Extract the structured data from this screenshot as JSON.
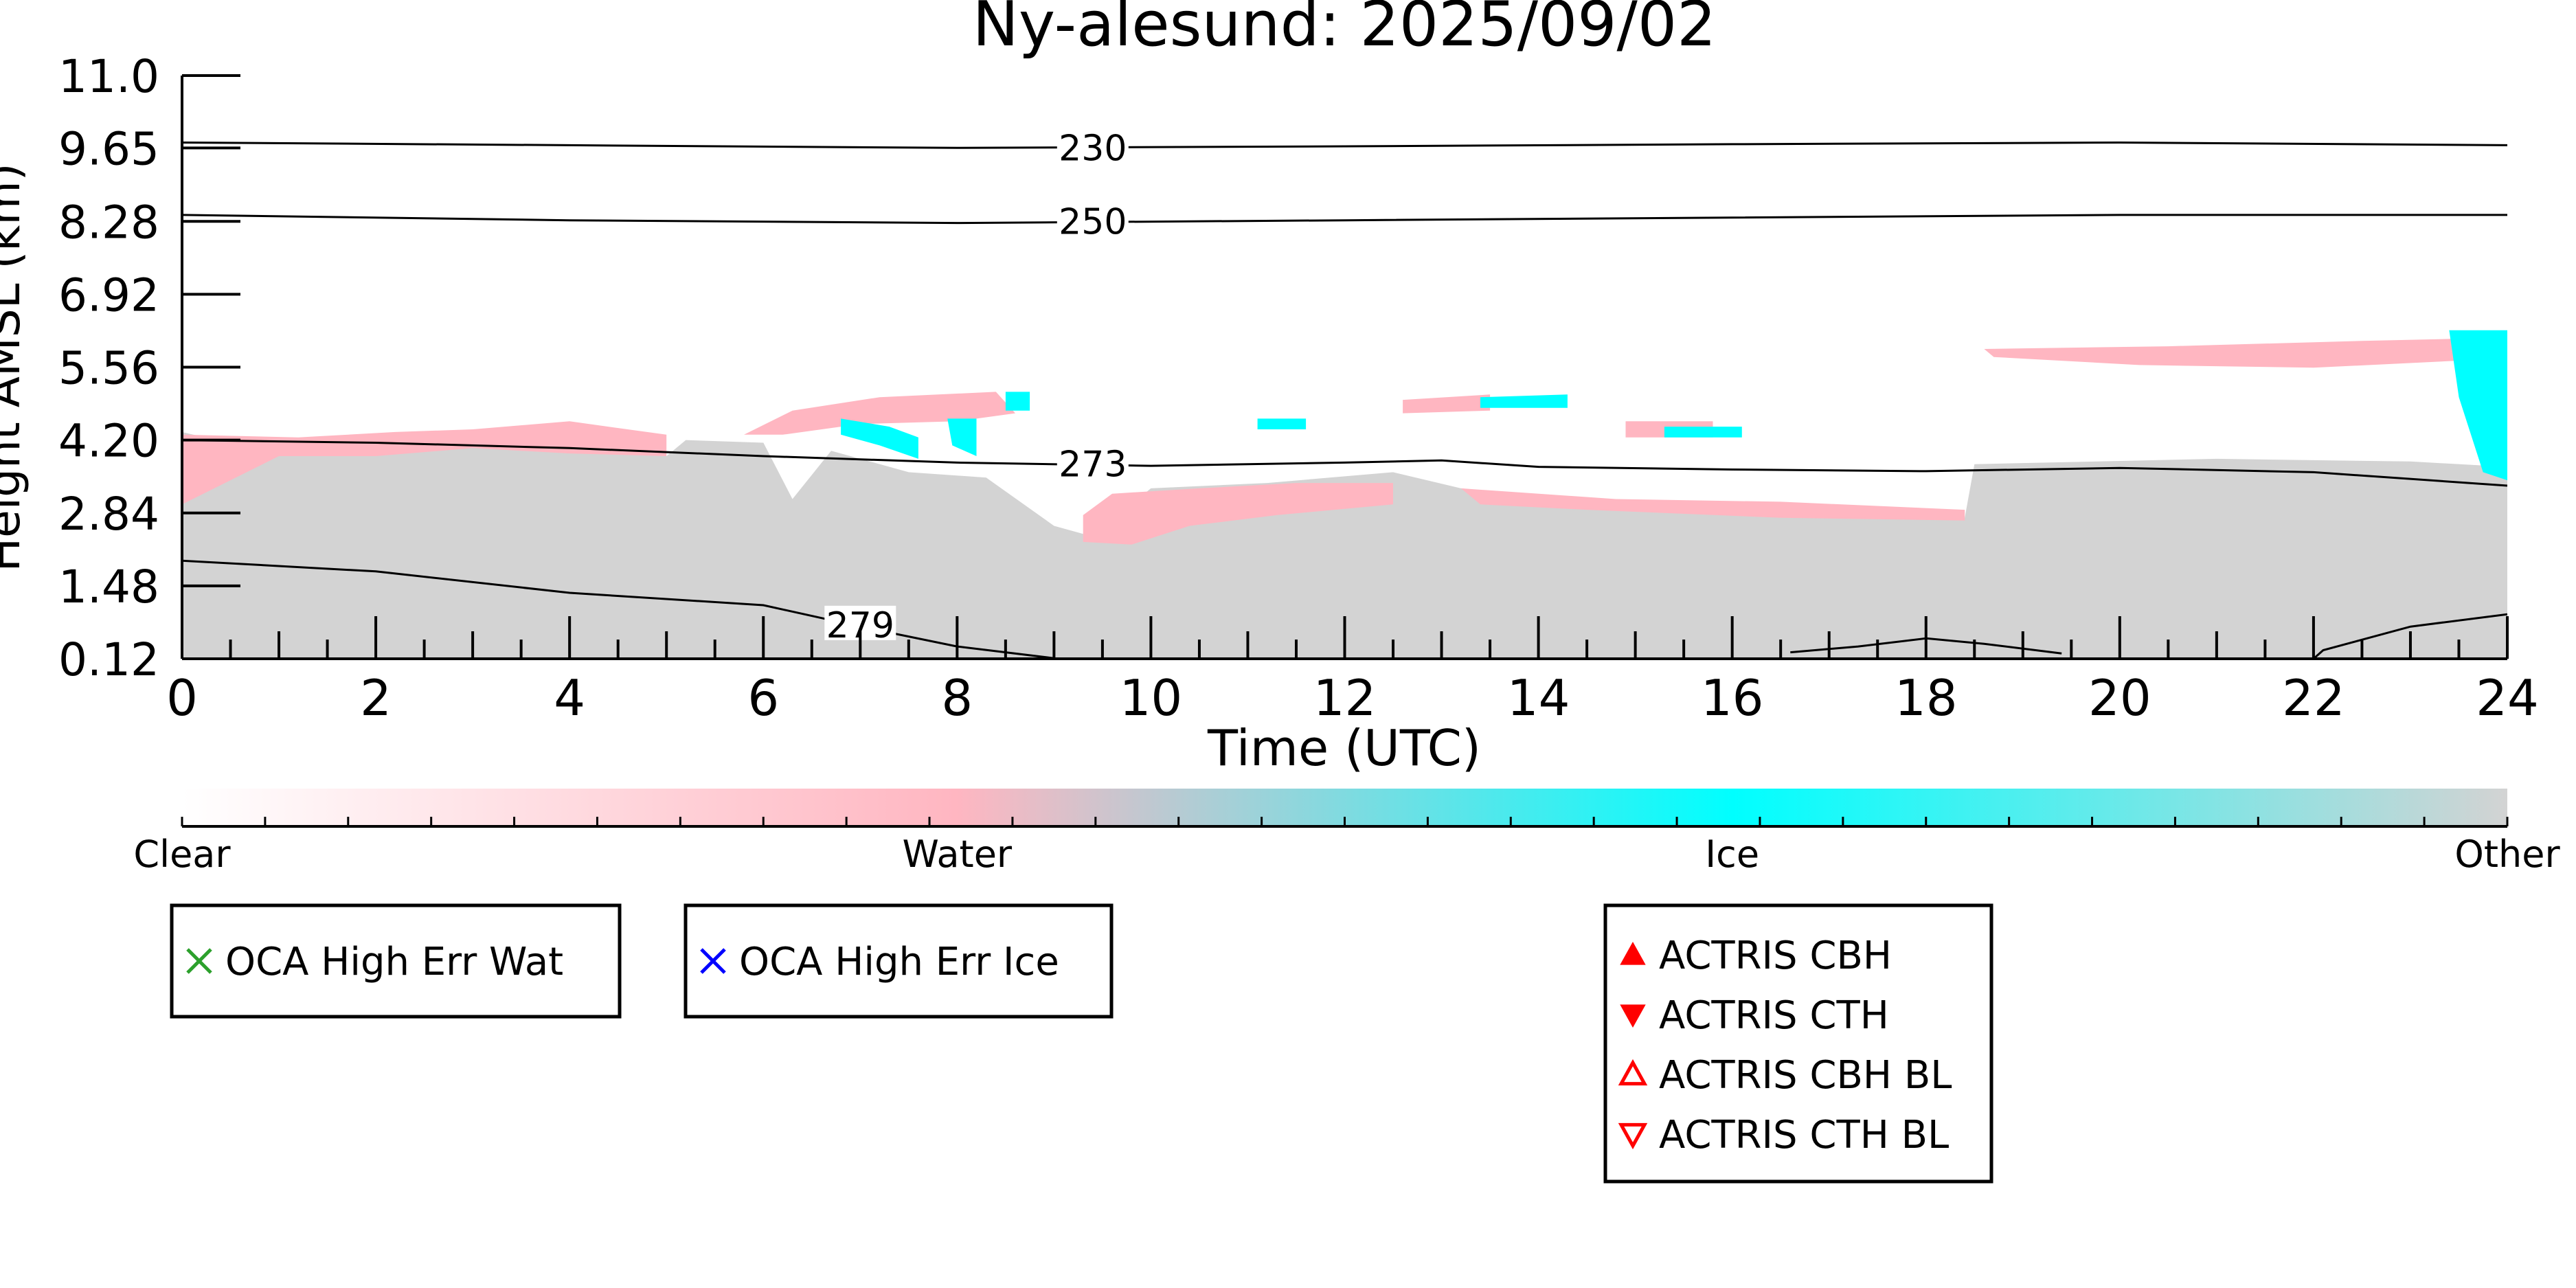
{
  "chart_data": {
    "type": "heatmap",
    "title": "Ny-alesund: 2025/09/02",
    "xlabel": "Time (UTC)",
    "ylabel": "Height AMSL (km)",
    "xlim": [
      0,
      24
    ],
    "ylim": [
      0.12,
      11.0
    ],
    "x_ticks": [
      0,
      2,
      4,
      6,
      8,
      10,
      12,
      14,
      16,
      18,
      20,
      22,
      24
    ],
    "y_ticks": [
      0.12,
      1.48,
      2.84,
      4.2,
      5.56,
      6.92,
      8.28,
      9.65,
      11.0
    ],
    "y_tick_labels": [
      "0.12",
      "1.48",
      "2.84",
      "4.20",
      "5.56",
      "6.92",
      "8.28",
      "9.65",
      "11.0"
    ],
    "grid": false,
    "colorbar": {
      "labels": [
        "Clear",
        "Water",
        "Ice",
        "Other"
      ],
      "colors": [
        "#ffffff",
        "#ffb6c1",
        "#00ffff",
        "#d3d3d3"
      ]
    },
    "category_colors": {
      "Other": "#d3d3d3",
      "Water": "#ffb6c1",
      "Ice": "#00ffff"
    },
    "regions": [
      {
        "category": "Other",
        "points": [
          [
            0,
            0.12
          ],
          [
            0,
            4.35
          ],
          [
            0.7,
            4.05
          ],
          [
            1.5,
            4.2
          ],
          [
            3,
            4.1
          ],
          [
            5,
            3.9
          ],
          [
            5.2,
            4.2
          ],
          [
            6,
            4.15
          ],
          [
            6.3,
            3.1
          ],
          [
            6.7,
            4.0
          ],
          [
            7.5,
            3.6
          ],
          [
            8.3,
            3.5
          ],
          [
            9,
            2.6
          ],
          [
            9.4,
            2.4
          ],
          [
            10,
            3.3
          ],
          [
            11.2,
            3.4
          ],
          [
            12.5,
            3.6
          ],
          [
            13.2,
            3.3
          ],
          [
            14.5,
            3.0
          ],
          [
            16,
            2.95
          ],
          [
            17.5,
            2.8
          ],
          [
            18.4,
            2.75
          ],
          [
            18.5,
            3.75
          ],
          [
            21,
            3.85
          ],
          [
            23,
            3.8
          ],
          [
            24,
            3.7
          ],
          [
            24,
            0.12
          ]
        ]
      },
      {
        "category": "Water",
        "points": [
          [
            0,
            3.0
          ],
          [
            0,
            4.3
          ],
          [
            1.2,
            4.25
          ],
          [
            2.2,
            4.35
          ],
          [
            3,
            4.4
          ],
          [
            4,
            4.55
          ],
          [
            5,
            4.3
          ],
          [
            5,
            3.9
          ],
          [
            4,
            3.95
          ],
          [
            3,
            4.05
          ],
          [
            2,
            3.9
          ],
          [
            1,
            3.9
          ]
        ]
      },
      {
        "category": "Water",
        "points": [
          [
            5.8,
            4.3
          ],
          [
            6.3,
            4.75
          ],
          [
            7.2,
            5.0
          ],
          [
            8.4,
            5.1
          ],
          [
            8.6,
            4.7
          ],
          [
            8,
            4.55
          ],
          [
            7,
            4.5
          ],
          [
            6.2,
            4.3
          ]
        ]
      },
      {
        "category": "Water",
        "points": [
          [
            9.3,
            2.3
          ],
          [
            9.8,
            2.25
          ],
          [
            10.4,
            2.6
          ],
          [
            11.3,
            2.8
          ],
          [
            12.5,
            3.0
          ],
          [
            12.5,
            3.4
          ],
          [
            11.5,
            3.4
          ],
          [
            10.5,
            3.3
          ],
          [
            9.6,
            3.2
          ],
          [
            9.3,
            2.8
          ]
        ]
      },
      {
        "category": "Water",
        "points": [
          [
            13.2,
            3.3
          ],
          [
            14.8,
            3.1
          ],
          [
            16.5,
            3.05
          ],
          [
            18.4,
            2.9
          ],
          [
            18.4,
            2.7
          ],
          [
            16.5,
            2.75
          ],
          [
            14.5,
            2.9
          ],
          [
            13.4,
            3.0
          ]
        ]
      },
      {
        "category": "Water",
        "points": [
          [
            18.6,
            5.9
          ],
          [
            20.5,
            5.95
          ],
          [
            22.5,
            6.05
          ],
          [
            23.7,
            6.1
          ],
          [
            23.7,
            5.7
          ],
          [
            22,
            5.55
          ],
          [
            20.2,
            5.6
          ],
          [
            18.7,
            5.75
          ]
        ]
      },
      {
        "category": "Water",
        "points": [
          [
            12.6,
            4.95
          ],
          [
            13.5,
            5.05
          ],
          [
            13.5,
            4.75
          ],
          [
            12.6,
            4.7
          ]
        ]
      },
      {
        "category": "Water",
        "points": [
          [
            14.9,
            4.55
          ],
          [
            15.8,
            4.55
          ],
          [
            15.8,
            4.25
          ],
          [
            14.9,
            4.25
          ]
        ]
      },
      {
        "category": "Ice",
        "points": [
          [
            6.8,
            4.6
          ],
          [
            7.3,
            4.45
          ],
          [
            7.6,
            4.25
          ],
          [
            7.6,
            3.85
          ],
          [
            7.2,
            4.1
          ],
          [
            6.8,
            4.3
          ]
        ]
      },
      {
        "category": "Ice",
        "points": [
          [
            7.9,
            4.6
          ],
          [
            8.2,
            4.6
          ],
          [
            8.2,
            3.9
          ],
          [
            7.95,
            4.1
          ]
        ]
      },
      {
        "category": "Ice",
        "points": [
          [
            8.5,
            5.1
          ],
          [
            8.75,
            5.1
          ],
          [
            8.75,
            4.75
          ],
          [
            8.5,
            4.75
          ]
        ]
      },
      {
        "category": "Ice",
        "points": [
          [
            13.4,
            5.0
          ],
          [
            14.3,
            5.05
          ],
          [
            14.3,
            4.8
          ],
          [
            13.4,
            4.8
          ]
        ]
      },
      {
        "category": "Ice",
        "points": [
          [
            11.1,
            4.6
          ],
          [
            11.6,
            4.6
          ],
          [
            11.6,
            4.4
          ],
          [
            11.1,
            4.4
          ]
        ]
      },
      {
        "category": "Ice",
        "points": [
          [
            15.3,
            4.45
          ],
          [
            16.1,
            4.45
          ],
          [
            16.1,
            4.25
          ],
          [
            15.3,
            4.25
          ]
        ]
      },
      {
        "category": "Ice",
        "points": [
          [
            23.4,
            6.25
          ],
          [
            24,
            6.25
          ],
          [
            24,
            3.45
          ],
          [
            23.75,
            3.6
          ],
          [
            23.5,
            5.0
          ]
        ]
      }
    ],
    "contours": [
      {
        "label": "230",
        "label_at": [
          9.4,
          9.65
        ],
        "points": [
          [
            0,
            9.75
          ],
          [
            4,
            9.7
          ],
          [
            8,
            9.65
          ],
          [
            12,
            9.68
          ],
          [
            16,
            9.72
          ],
          [
            20,
            9.75
          ],
          [
            24,
            9.7
          ]
        ]
      },
      {
        "label": "250",
        "label_at": [
          9.4,
          8.28
        ],
        "points": [
          [
            0,
            8.4
          ],
          [
            4,
            8.3
          ],
          [
            8,
            8.25
          ],
          [
            12,
            8.3
          ],
          [
            16,
            8.35
          ],
          [
            20,
            8.4
          ],
          [
            24,
            8.4
          ]
        ]
      },
      {
        "label": "273",
        "label_at": [
          9.4,
          3.75
        ],
        "points": [
          [
            0,
            4.2
          ],
          [
            2,
            4.15
          ],
          [
            4,
            4.05
          ],
          [
            6,
            3.9
          ],
          [
            8,
            3.78
          ],
          [
            10,
            3.72
          ],
          [
            12,
            3.78
          ],
          [
            13,
            3.82
          ],
          [
            14,
            3.7
          ],
          [
            16,
            3.65
          ],
          [
            18,
            3.62
          ],
          [
            20,
            3.68
          ],
          [
            22,
            3.6
          ],
          [
            24,
            3.35
          ]
        ]
      },
      {
        "label": "279",
        "label_at": [
          7.0,
          0.75
        ],
        "points": [
          [
            0,
            1.95
          ],
          [
            2,
            1.75
          ],
          [
            4,
            1.35
          ],
          [
            6,
            1.12
          ],
          [
            7,
            0.72
          ],
          [
            8,
            0.35
          ],
          [
            9,
            0.13
          ]
        ]
      },
      {
        "label": "",
        "label_at": null,
        "points": [
          [
            16.6,
            0.24
          ],
          [
            17.3,
            0.35
          ],
          [
            18,
            0.5
          ],
          [
            18.6,
            0.4
          ],
          [
            19.4,
            0.22
          ]
        ]
      },
      {
        "label": "",
        "label_at": null,
        "points": [
          [
            22,
            0.12
          ],
          [
            22.1,
            0.28
          ],
          [
            23,
            0.72
          ],
          [
            24,
            0.95
          ]
        ]
      }
    ],
    "legends": [
      {
        "entries": [
          {
            "label": "OCA High Err Wat",
            "marker": "x",
            "color": "#2ca02c"
          }
        ]
      },
      {
        "entries": [
          {
            "label": "OCA High Err Ice",
            "marker": "x",
            "color": "#0000ff"
          }
        ]
      },
      {
        "entries": [
          {
            "label": "ACTRIS CBH",
            "marker": "triangle-up-filled",
            "color": "#ff0000"
          },
          {
            "label": "ACTRIS CTH",
            "marker": "triangle-down-filled",
            "color": "#ff0000"
          },
          {
            "label": "ACTRIS CBH BL",
            "marker": "triangle-up-open",
            "color": "#ff0000"
          },
          {
            "label": "ACTRIS CTH BL",
            "marker": "triangle-down-open",
            "color": "#ff0000"
          }
        ]
      }
    ]
  }
}
